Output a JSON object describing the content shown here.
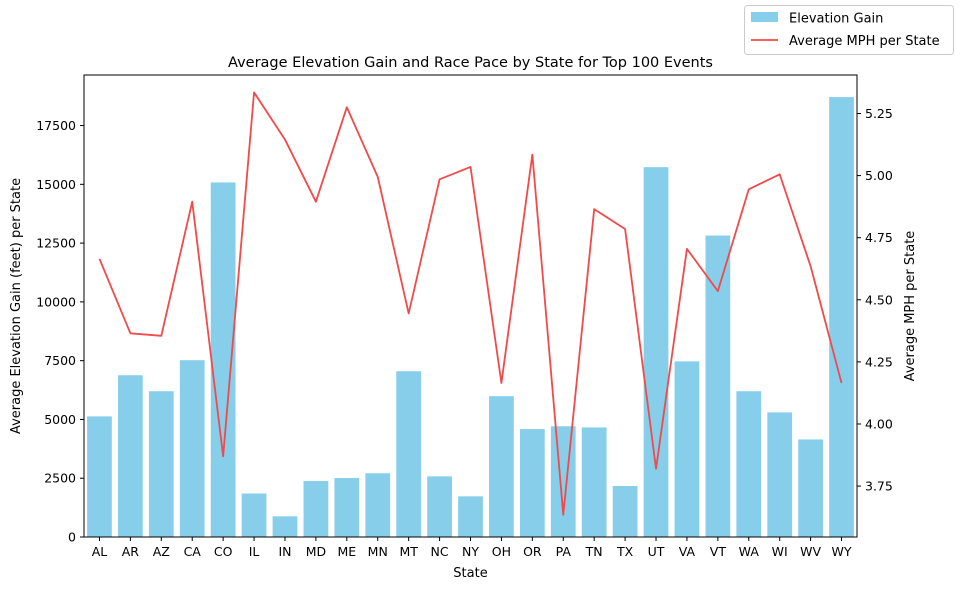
{
  "chart_data": {
    "type": "bar",
    "title": "Average Elevation Gain and Race Pace by State for Top 100 Events",
    "xlabel": "State",
    "ylabel": "Average Elevation Gain (feet) per State",
    "y2label": "Average MPH per State",
    "categories": [
      "AL",
      "AR",
      "AZ",
      "CA",
      "CO",
      "IL",
      "IN",
      "MD",
      "ME",
      "MN",
      "MT",
      "NC",
      "NY",
      "OH",
      "OR",
      "PA",
      "TN",
      "TX",
      "UT",
      "VA",
      "VT",
      "WA",
      "WI",
      "WV",
      "WY"
    ],
    "series": [
      {
        "name": "Elevation Gain",
        "type": "bar",
        "axis": "left",
        "color": "#87ceeb",
        "values": [
          5130,
          6880,
          6200,
          7520,
          15080,
          1850,
          880,
          2380,
          2510,
          2710,
          7050,
          2580,
          1730,
          5990,
          4590,
          4710,
          4660,
          2170,
          15730,
          7470,
          12820,
          6200,
          5300,
          4150,
          18710
        ]
      },
      {
        "name": "Average MPH per State",
        "type": "line",
        "axis": "right",
        "color": "#f04a4a",
        "values": [
          4.665,
          4.365,
          4.355,
          4.895,
          3.87,
          5.335,
          5.145,
          4.895,
          5.275,
          4.995,
          4.445,
          4.985,
          5.035,
          4.165,
          5.085,
          3.635,
          4.865,
          4.785,
          3.82,
          4.705,
          4.535,
          4.945,
          5.005,
          4.635,
          4.165
        ]
      }
    ],
    "ylim": [
      0,
      19650
    ],
    "y2lim": [
      3.545,
      5.405
    ],
    "yticks": [
      "0",
      "2500",
      "5000",
      "7500",
      "10000",
      "12500",
      "15000",
      "17500"
    ],
    "y2ticks": [
      "3.75",
      "4.00",
      "4.25",
      "4.50",
      "4.75",
      "5.00",
      "5.25"
    ],
    "legend": "top-right (outside plot)"
  }
}
